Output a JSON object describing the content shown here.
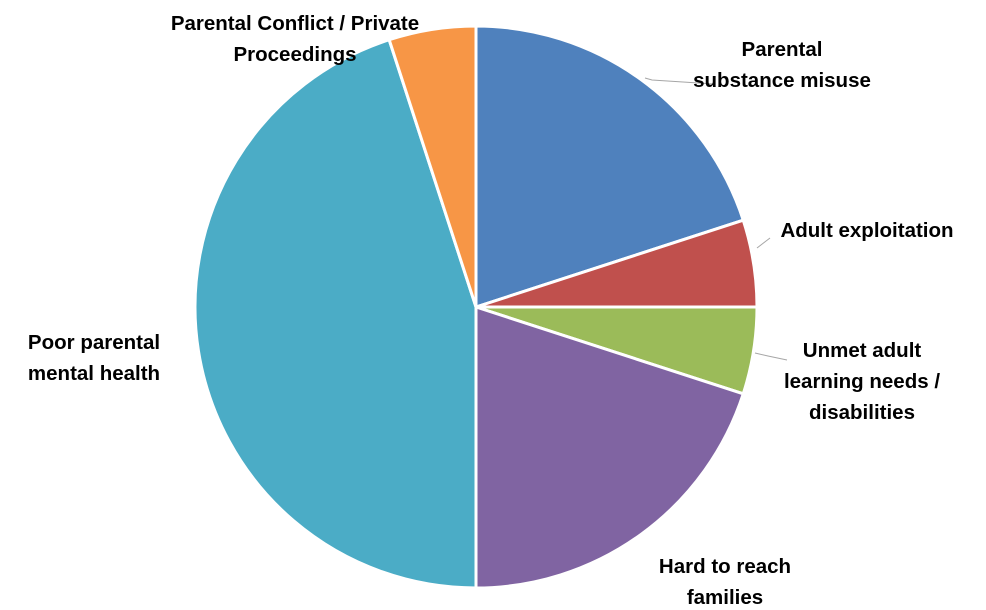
{
  "chart_data": {
    "type": "pie",
    "title": "",
    "start_angle_deg": 0,
    "direction": "clockwise",
    "border_color": "#ffffff",
    "slices": [
      {
        "label": "Parental substance misuse",
        "value": 20,
        "color": "#4f81bd"
      },
      {
        "label": "Adult exploitation",
        "value": 5,
        "color": "#c0504d"
      },
      {
        "label": "Unmet adult learning needs / disabilities",
        "value": 5,
        "color": "#9bbb59"
      },
      {
        "label": "Hard to reach families",
        "value": 20,
        "color": "#8064a2"
      },
      {
        "label": "Poor parental mental health",
        "value": 45,
        "color": "#4bacc6"
      },
      {
        "label": "Parental Conflict / Private Proceedings",
        "value": 5,
        "color": "#f79646"
      }
    ],
    "label_lines": [
      [
        "Parental",
        "substance misuse"
      ],
      [
        "Adult exploitation"
      ],
      [
        "Unmet adult",
        "learning needs /",
        "disabilities"
      ],
      [
        "Hard to reach",
        "families"
      ],
      [
        "Poor parental",
        "mental health"
      ],
      [
        "Parental Conflict / Private",
        "Proceedings"
      ]
    ]
  }
}
